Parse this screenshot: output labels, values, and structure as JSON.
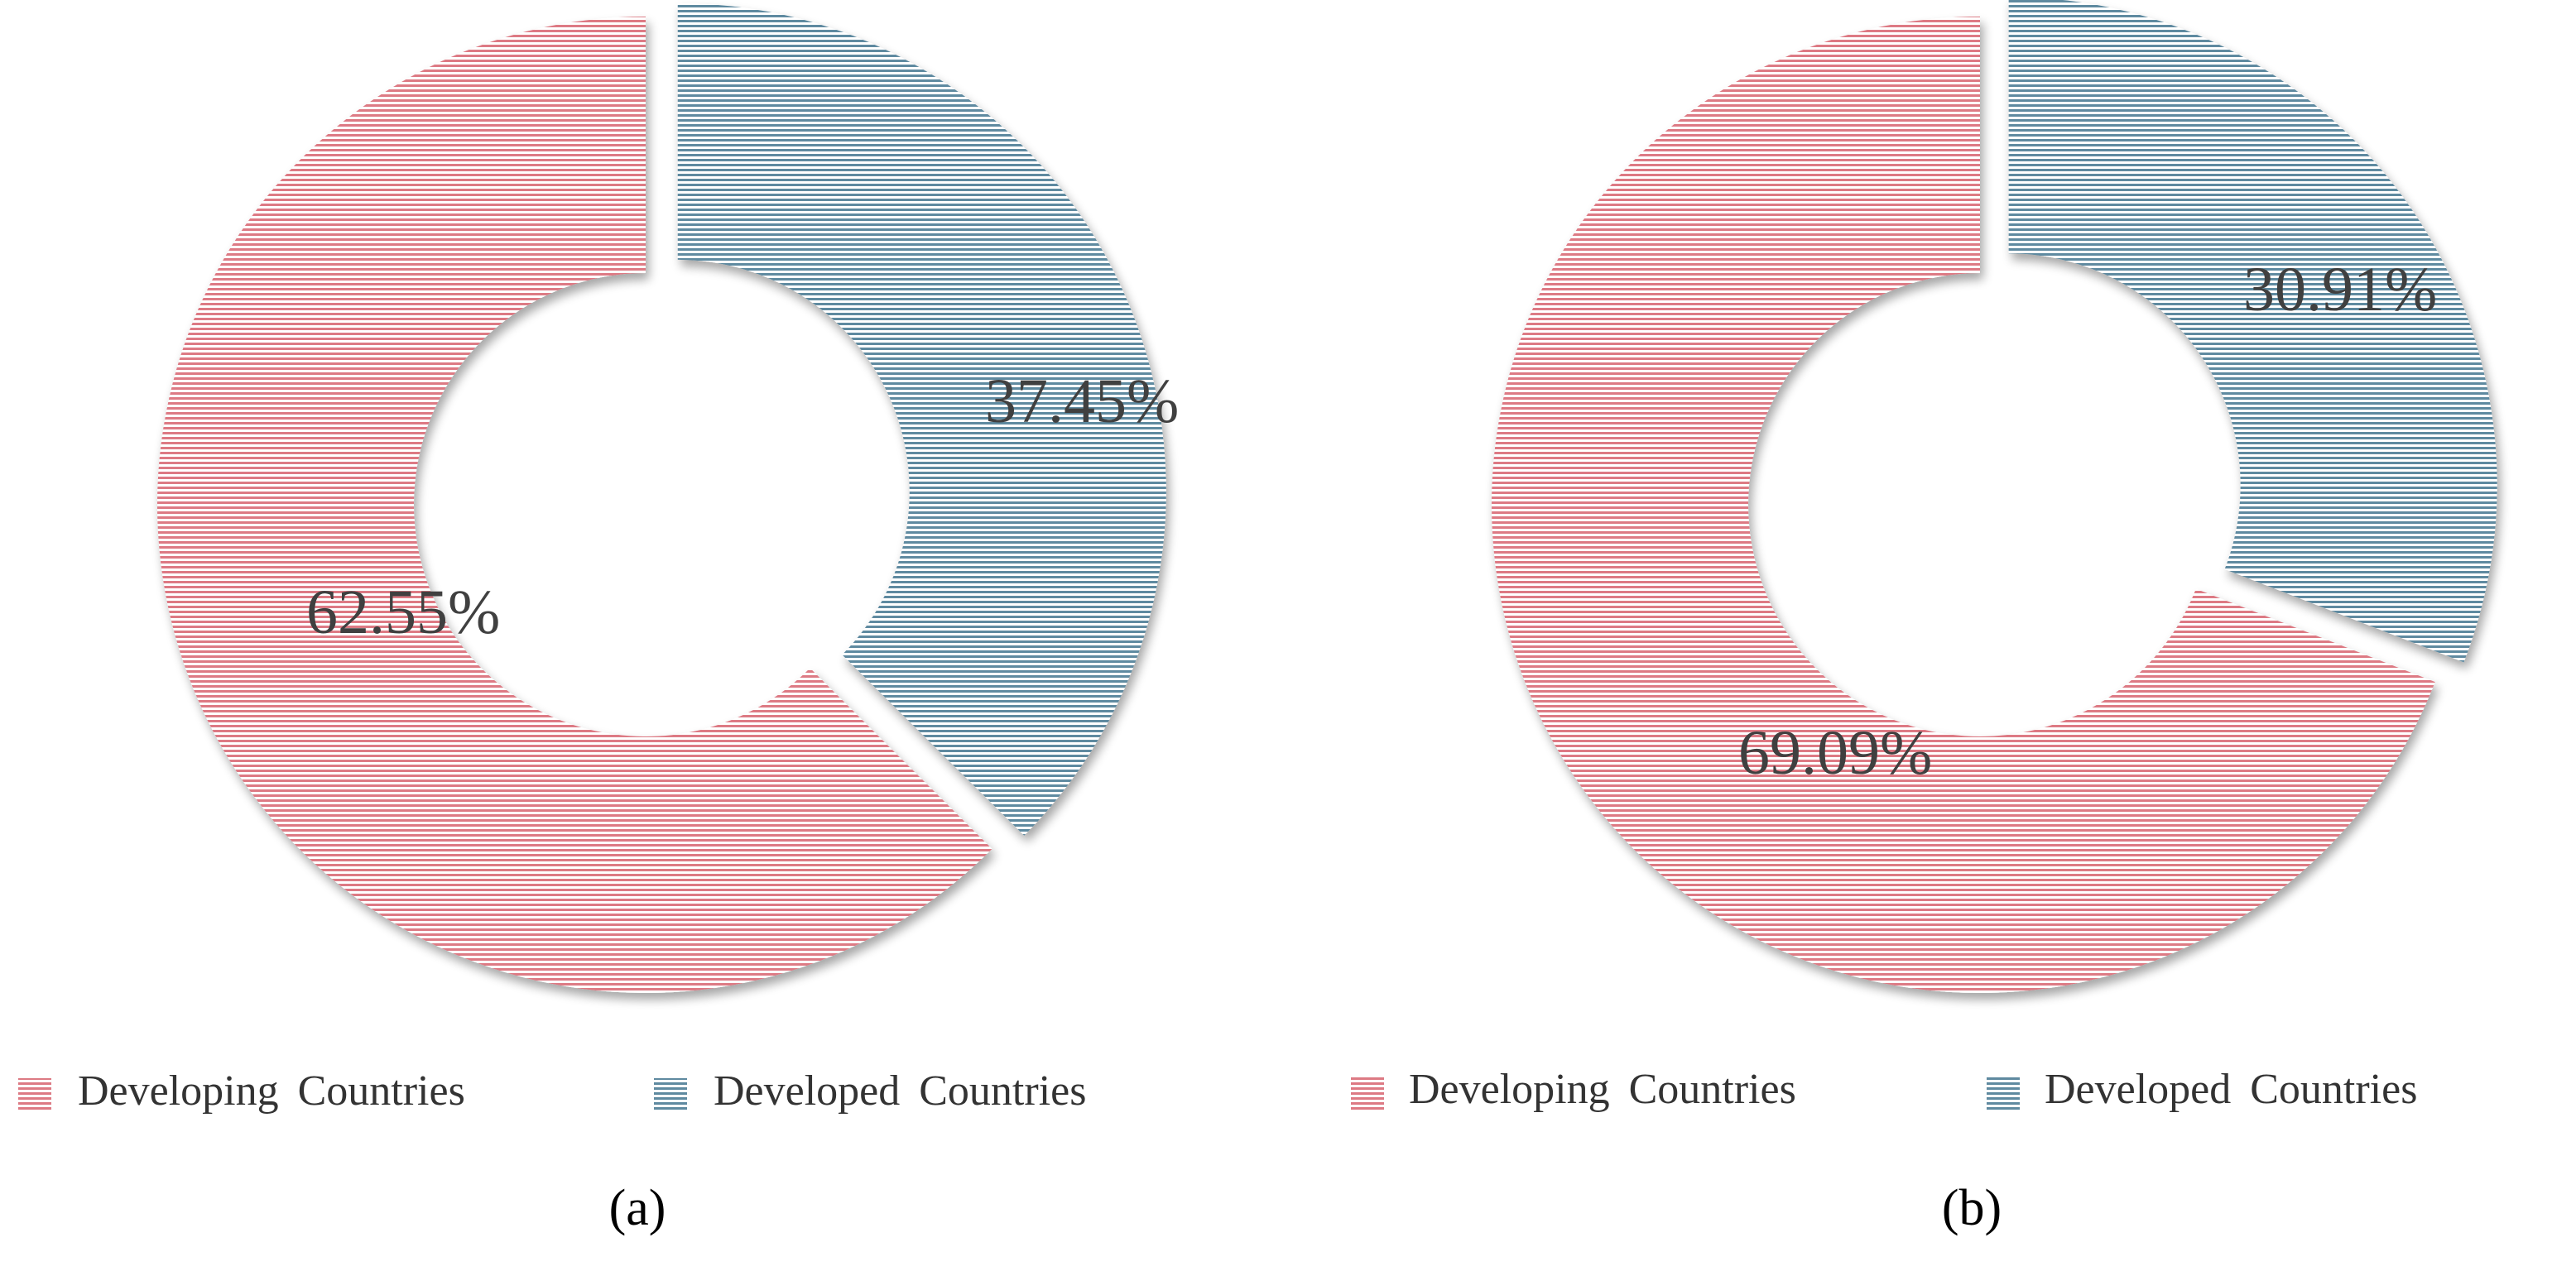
{
  "chart_data": [
    {
      "type": "pie",
      "variant": "doughnut",
      "panel_label": "(a)",
      "categories": [
        "Developing Countries",
        "Developed Countries"
      ],
      "values": [
        62.55,
        37.45
      ],
      "value_labels": [
        "62.55%",
        "37.45%"
      ],
      "legend": [
        "Developing Countries",
        "Developed Countries"
      ],
      "legend_placement": "bottom",
      "exploded": "Developed Countries",
      "colors": [
        "#dd7a84",
        "#5f8aa0"
      ],
      "fill_pattern": "horizontal-lines"
    },
    {
      "type": "pie",
      "variant": "doughnut",
      "panel_label": "(b)",
      "categories": [
        "Developing Countries",
        "Developed Countries"
      ],
      "values": [
        69.09,
        30.91
      ],
      "value_labels": [
        "69.09%",
        "30.91%"
      ],
      "legend": [
        "Developing Countries",
        "Developed Countries"
      ],
      "legend_placement": "bottom",
      "exploded": "Developed Countries",
      "colors": [
        "#dd7a84",
        "#5f8aa0"
      ],
      "fill_pattern": "horizontal-lines"
    }
  ]
}
